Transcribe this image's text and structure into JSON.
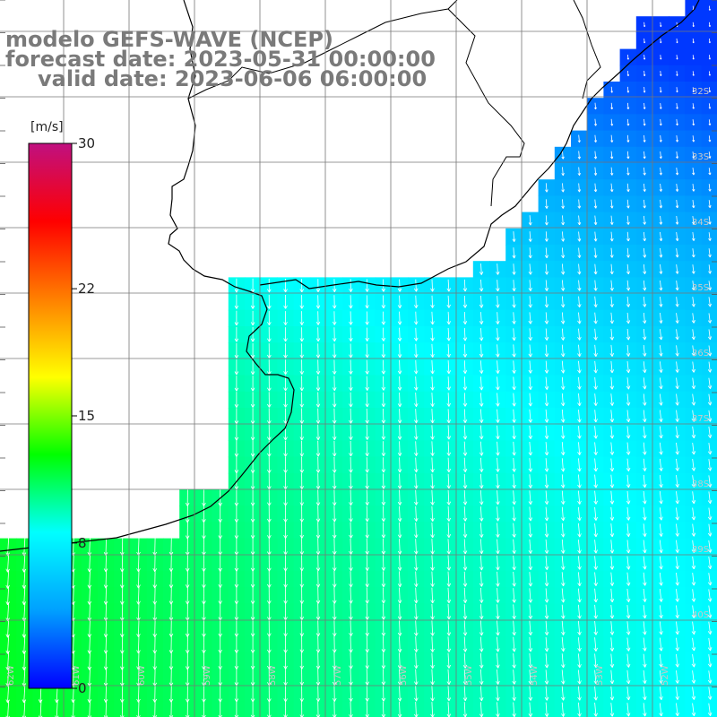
{
  "header": {
    "model": "modelo GEFS-WAVE (NCEP)",
    "forecast": "forecast date: 2023-05-31 00:00:00",
    "valid": "valid date: 2023-06-06 06:00:00"
  },
  "colorbar": {
    "unit": "[m/s]",
    "ticks": [
      {
        "value": 30,
        "label": "30"
      },
      {
        "value": 22,
        "label": "22"
      },
      {
        "value": 15,
        "label": "15"
      },
      {
        "value": 8,
        "label": "8"
      },
      {
        "value": 0,
        "label": "0"
      }
    ],
    "colors": [
      "#0000ff",
      "#00a0ff",
      "#00ffff",
      "#00ff00",
      "#ffff00",
      "#ff8000",
      "#ff0000",
      "#c01080"
    ]
  },
  "map": {
    "lat_labels": [
      "32S",
      "33S",
      "34S",
      "35S",
      "36S",
      "37S",
      "38S",
      "39S",
      "40S"
    ],
    "lon_labels": [
      "62W",
      "61W",
      "60W",
      "59W",
      "58W",
      "57W",
      "56W",
      "55W",
      "54W",
      "53W",
      "52W"
    ],
    "land_color": "#ffffff",
    "vector_color": "#ffffff",
    "field": "wind speed [m/s] with direction arrows"
  }
}
